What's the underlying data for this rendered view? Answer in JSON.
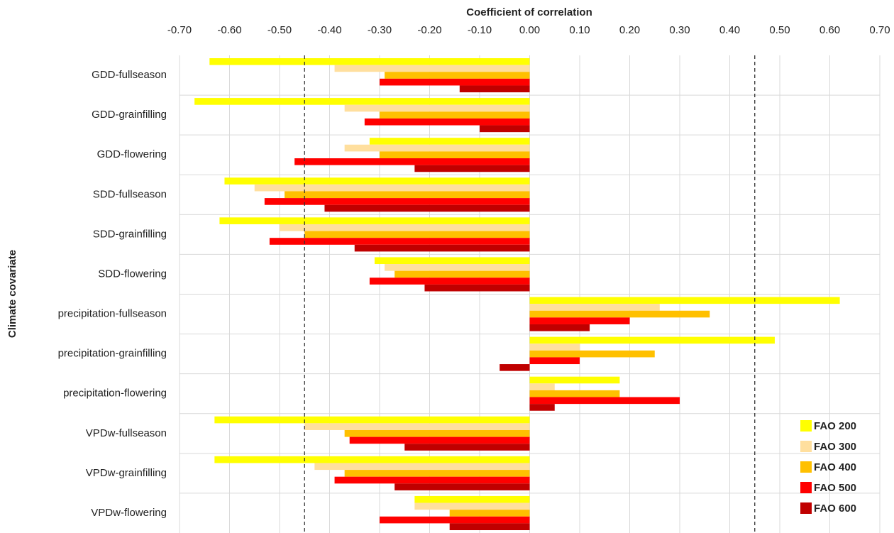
{
  "chart_data": {
    "type": "hbar",
    "title": "Coefficient of correlation",
    "y_label": "Climate covariate",
    "categories": [
      "GDD-fullseason",
      "GDD-grainfilling",
      "GDD-flowering",
      "SDD-fullseason",
      "SDD-grainfilling",
      "SDD-flowering",
      "precipitation-fullseason",
      "precipitation-grainfilling",
      "precipitation-flowering",
      "VPDw-fullseason",
      "VPDw-grainfilling",
      "VPDw-flowering"
    ],
    "series": [
      {
        "name": "FAO 200",
        "color": "#ffff00",
        "values": [
          -0.64,
          -0.67,
          -0.32,
          -0.61,
          -0.62,
          -0.31,
          0.62,
          0.49,
          0.18,
          -0.63,
          -0.63,
          -0.23
        ]
      },
      {
        "name": "FAO 300",
        "color": "#ffdf9e",
        "values": [
          -0.39,
          -0.37,
          -0.37,
          -0.55,
          -0.5,
          -0.29,
          0.26,
          0.1,
          0.05,
          -0.45,
          -0.43,
          -0.23
        ]
      },
      {
        "name": "FAO 400",
        "color": "#ffc000",
        "values": [
          -0.29,
          -0.3,
          -0.3,
          -0.49,
          -0.45,
          -0.27,
          0.36,
          0.25,
          0.18,
          -0.37,
          -0.37,
          -0.16
        ]
      },
      {
        "name": "FAO 500",
        "color": "#ff0000",
        "values": [
          -0.3,
          -0.33,
          -0.47,
          -0.53,
          -0.52,
          -0.32,
          0.2,
          0.1,
          0.3,
          -0.36,
          -0.39,
          -0.3
        ]
      },
      {
        "name": "FAO 600",
        "color": "#c00000",
        "values": [
          -0.14,
          -0.1,
          -0.23,
          -0.41,
          -0.35,
          -0.21,
          0.12,
          -0.06,
          0.05,
          -0.25,
          -0.27,
          -0.16
        ]
      }
    ],
    "xlim": [
      -0.7,
      0.7
    ],
    "xticks": [
      {
        "value": -0.7,
        "label": "-0.70"
      },
      {
        "value": -0.6,
        "label": "-0.60"
      },
      {
        "value": -0.5,
        "label": "-0.50"
      },
      {
        "value": -0.4,
        "label": "-0.40"
      },
      {
        "value": -0.3,
        "label": "-0.30"
      },
      {
        "value": -0.2,
        "label": "-0.20"
      },
      {
        "value": -0.1,
        "label": "-0.10"
      },
      {
        "value": 0,
        "label": "0.00"
      },
      {
        "value": 0.1,
        "label": "0.10"
      },
      {
        "value": 0.2,
        "label": "0.20"
      },
      {
        "value": 0.3,
        "label": "0.30"
      },
      {
        "value": 0.4,
        "label": "0.40"
      },
      {
        "value": 0.5,
        "label": "0.50"
      },
      {
        "value": 0.6,
        "label": "0.60"
      },
      {
        "value": 0.7,
        "label": "0.70"
      }
    ],
    "reference_lines": [
      -0.45,
      0.45
    ],
    "grid": true,
    "legend": "bottom-right"
  }
}
